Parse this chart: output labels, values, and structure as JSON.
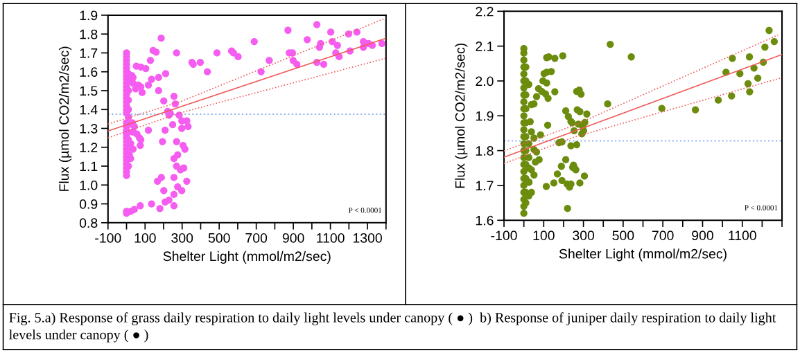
{
  "chart_data": [
    {
      "type": "scatter",
      "xlabel": "Shelter Light (mmol/m2/sec)",
      "ylabel": "Flux (µmol CO2/m2/sec)",
      "marker": "circle",
      "grid": false,
      "legend": false,
      "xlim": [
        -100,
        1400
      ],
      "ylim": [
        0.8,
        1.9
      ],
      "xticks": [
        -100,
        {
          "value": 0,
          "label": null
        },
        100,
        {
          "value": 200,
          "label": null
        },
        300,
        {
          "value": 400,
          "label": null
        },
        500,
        {
          "value": 600,
          "label": null
        },
        700,
        {
          "value": 800,
          "label": null
        },
        900,
        {
          "value": 1000,
          "label": null
        },
        1100,
        {
          "value": 1200,
          "label": null
        },
        1300,
        {
          "value": 1400,
          "label": null
        }
      ],
      "yticks": [
        {
          "value": 0.8,
          "label": "0.8"
        },
        {
          "value": 0.9,
          "label": "0.9"
        },
        {
          "value": 1.0,
          "label": "1.0"
        },
        {
          "value": 1.1,
          "label": "1.1"
        },
        {
          "value": 1.2,
          "label": "1.2"
        },
        {
          "value": 1.3,
          "label": "1.3"
        },
        {
          "value": 1.4,
          "label": "1.4"
        },
        {
          "value": 1.5,
          "label": "1.5"
        },
        {
          "value": 1.6,
          "label": "1.6"
        },
        {
          "value": 1.7,
          "label": "1.7"
        },
        {
          "value": 1.8,
          "label": "1.8"
        },
        {
          "value": 1.9,
          "label": "1.9"
        }
      ],
      "ref_lines": [
        {
          "axis": "y",
          "value": 1.375,
          "color": "#8fb0f5",
          "line_style": "dotted"
        }
      ],
      "annotations": [
        "P < 0.0001",
        "Fig. 5.a) Response of grass daily respiration to daily light levels under canopy ( ● )  b) Response of juniper daily respiration to daily light levels under canopy ( ● )"
      ],
      "series": [
        {
          "color": "#f55cf0",
          "x": [
            0,
            0,
            0,
            0,
            0,
            0,
            0,
            0,
            0,
            0,
            0,
            0,
            0,
            0,
            0,
            0,
            0,
            0,
            0,
            0,
            0,
            0,
            0,
            0,
            0,
            0,
            0,
            0,
            0,
            0,
            0,
            0,
            0,
            0,
            10,
            10,
            10,
            10,
            10,
            10,
            10,
            10,
            10,
            10,
            187,
            143,
            160,
            270,
            129,
            53,
            77,
            104,
            118,
            135,
            173,
            211,
            173,
            201,
            256,
            263,
            222,
            236,
            229,
            284,
            298,
            325,
            332,
            298,
            208,
            249,
            118,
            194,
            270,
            305,
            315,
            256,
            276,
            270,
            291,
            309,
            167,
            188,
            256,
            276,
            298,
            325,
            201,
            208,
            229,
            256,
            256,
            180,
            135,
            74,
            22,
            42,
            77,
            74,
            35,
            63,
            77,
            84,
            49,
            28,
            35,
            31,
            42,
            35,
            56,
            70,
            22,
            35,
            15,
            22,
            436,
            353,
            360,
            398,
            488,
            567,
            577,
            602,
            689,
            726,
            770,
            871,
            878,
            895,
            899,
            919,
            975,
            1027,
            1027,
            1047,
            1041,
            1064,
            1102,
            1110,
            1138,
            1129,
            1147,
            1198,
            1243,
            1206,
            1278,
            1278,
            1306,
            1326,
            1378
          ],
          "values": [
            1.05,
            1.07,
            1.09,
            1.11,
            1.13,
            1.15,
            1.17,
            1.19,
            1.21,
            1.23,
            1.25,
            1.27,
            1.29,
            1.31,
            1.33,
            1.38,
            1.4,
            1.42,
            1.44,
            1.46,
            1.48,
            1.5,
            1.52,
            1.54,
            1.56,
            1.58,
            1.6,
            1.62,
            1.64,
            1.66,
            1.68,
            1.7,
            0.85,
            0.86,
            1.1,
            1.24,
            1.28,
            1.32,
            1.36,
            1.4,
            1.45,
            1.5,
            1.55,
            1.59,
            1.778,
            1.713,
            1.704,
            1.7,
            1.66,
            1.63,
            1.625,
            1.617,
            1.53,
            1.56,
            1.57,
            1.59,
            1.5,
            1.445,
            1.47,
            1.43,
            1.39,
            1.38,
            1.37,
            1.37,
            1.34,
            1.34,
            1.31,
            1.3,
            1.29,
            1.32,
            1.29,
            1.23,
            1.23,
            1.21,
            1.19,
            1.14,
            1.16,
            1.1,
            1.08,
            1.09,
            1.02,
            1.04,
            1.04,
            0.99,
            0.97,
            1.02,
            0.97,
            0.91,
            0.92,
            0.95,
            0.89,
            0.875,
            0.9,
            0.89,
            0.86,
            0.87,
            1.24,
            1.21,
            1.54,
            1.53,
            1.52,
            1.49,
            1.51,
            1.58,
            1.57,
            1.33,
            1.31,
            1.28,
            1.27,
            1.25,
            1.22,
            1.19,
            1.16,
            1.14,
            1.6,
            1.65,
            1.64,
            1.65,
            1.7,
            1.71,
            1.7,
            1.68,
            1.76,
            1.6,
            1.66,
            1.82,
            1.7,
            1.7,
            1.66,
            1.64,
            1.77,
            1.85,
            1.65,
            1.75,
            1.73,
            1.64,
            1.81,
            1.76,
            1.74,
            1.7,
            1.68,
            1.8,
            1.81,
            1.71,
            1.76,
            1.73,
            1.75,
            1.74,
            1.75
          ]
        },
        {
          "type": "line",
          "color": "#f05a5a",
          "line_style": "solid",
          "marker": "none",
          "x": [
            -100,
            1400
          ],
          "values": [
            1.286,
            1.778
          ]
        },
        {
          "type": "line",
          "color": "#f05a5a",
          "line_style": "dotted",
          "marker": "none",
          "x": [
            -100,
            300,
            1400
          ],
          "values": [
            1.323,
            1.445,
            1.885
          ]
        },
        {
          "type": "line",
          "color": "#f05a5a",
          "line_style": "dotted",
          "marker": "none",
          "x": [
            -100,
            300,
            1400
          ],
          "values": [
            1.25,
            1.385,
            1.672
          ]
        }
      ]
    },
    {
      "type": "scatter",
      "xlabel": "Shelter Light (mmol/m2/sec)",
      "ylabel": "Flux (µmol CO2/m2/sec)",
      "marker": "circle",
      "grid": false,
      "legend": false,
      "xlim": [
        -100,
        1300
      ],
      "ylim": [
        1.6,
        2.2
      ],
      "xticks": [
        -100,
        {
          "value": 0,
          "label": null
        },
        100,
        {
          "value": 200,
          "label": null
        },
        300,
        {
          "value": 400,
          "label": null
        },
        500,
        {
          "value": 600,
          "label": null
        },
        700,
        {
          "value": 800,
          "label": null
        },
        900,
        {
          "value": 1000,
          "label": null
        },
        1100,
        {
          "value": 1200,
          "label": null
        },
        {
          "value": 1300,
          "label": null
        }
      ],
      "yticks": [
        {
          "value": 1.6,
          "label": "1.6"
        },
        {
          "value": 1.7,
          "label": "1.7"
        },
        {
          "value": 1.8,
          "label": "1.8"
        },
        {
          "value": 1.9,
          "label": "1.9"
        },
        {
          "value": 2.0,
          "label": "2.0"
        },
        {
          "value": 2.1,
          "label": "2.1"
        },
        {
          "value": 2.2,
          "label": "2.2"
        }
      ],
      "ref_lines": [
        {
          "axis": "y",
          "value": 1.828,
          "color": "#8fb0f5",
          "line_style": "dotted"
        }
      ],
      "annotations": [
        "P < 0.0001"
      ],
      "series": [
        {
          "color": "#6b8c0c",
          "x": [
            0,
            0,
            0,
            0,
            0,
            0,
            0,
            0,
            0,
            0,
            0,
            0,
            0,
            0,
            0,
            0,
            0,
            0,
            0,
            0,
            0,
            0,
            0,
            0,
            0,
            10,
            10,
            10,
            10,
            10,
            10,
            10,
            10,
            10,
            10,
            10,
            25,
            25,
            25,
            25,
            25,
            25,
            196,
            115,
            125,
            156,
            138,
            102,
            115,
            96,
            115,
            74,
            90,
            109,
            64,
            51,
            38,
            156,
            122,
            120,
            84,
            211,
            224,
            237,
            243,
            269,
            282,
            266,
            279,
            288,
            275,
            297,
            307,
            317,
            292,
            301,
            253,
            266,
            237,
            177,
            192,
            211,
            189,
            250,
            256,
            262,
            246,
            169,
            151,
            192,
            218,
            230,
            237,
            282,
            305,
            113,
            220,
            422,
            435,
            541,
            695,
            864,
            979,
            1018,
            1050,
            1046,
            1088,
            1129,
            1136,
            1137,
            1159,
            1178,
            1206,
            1214,
            1235,
            1261,
            51,
            64,
            77,
            58,
            38,
            51,
            26,
            38,
            32,
            38,
            51
          ],
          "values": [
            1.62,
            1.64,
            1.66,
            1.68,
            1.7,
            1.72,
            1.74,
            1.76,
            1.78,
            1.8,
            1.82,
            1.84,
            1.86,
            1.88,
            1.9,
            1.92,
            1.94,
            1.96,
            1.98,
            2.0,
            2.02,
            2.04,
            2.06,
            2.08,
            2.093,
            1.65,
            1.68,
            1.72,
            1.76,
            1.8,
            1.84,
            1.88,
            1.92,
            1.96,
            2.0,
            2.04,
            1.67,
            1.71,
            1.75,
            1.78,
            1.82,
            1.99,
            2.072,
            2.067,
            2.069,
            2.065,
            2.027,
            2.021,
            2.025,
            2.0,
            1.994,
            1.978,
            1.97,
            1.963,
            1.955,
            1.934,
            1.932,
            1.969,
            1.95,
            1.873,
            1.845,
            1.914,
            1.898,
            1.884,
            1.88,
            1.917,
            1.912,
            1.97,
            1.974,
            1.962,
            1.876,
            1.87,
            1.881,
            1.905,
            1.848,
            1.857,
            1.857,
            1.817,
            1.814,
            1.823,
            1.825,
            1.774,
            1.755,
            1.758,
            1.749,
            1.745,
            1.752,
            1.733,
            1.707,
            1.714,
            1.704,
            1.695,
            1.704,
            1.707,
            1.727,
            1.697,
            1.634,
            1.934,
            2.105,
            2.069,
            1.921,
            1.917,
            1.945,
            2.025,
            2.065,
            1.957,
            2.021,
            1.992,
            2.069,
            1.969,
            2.037,
            2.008,
            2.054,
            2.097,
            2.145,
            2.113,
            1.803,
            1.796,
            1.774,
            1.767,
            1.745,
            1.73,
            1.709,
            1.68,
            1.883,
            1.854,
            1.836
          ]
        },
        {
          "type": "line",
          "color": "#f05a5a",
          "line_style": "solid",
          "marker": "none",
          "x": [
            -100,
            1300
          ],
          "values": [
            1.781,
            2.076
          ]
        },
        {
          "type": "line",
          "color": "#f05a5a",
          "line_style": "dotted",
          "marker": "none",
          "x": [
            -100,
            250,
            1280
          ],
          "values": [
            1.799,
            1.872,
            2.132
          ]
        },
        {
          "type": "line",
          "color": "#f05a5a",
          "line_style": "dotted",
          "marker": "none",
          "x": [
            -100,
            250,
            1290
          ],
          "values": [
            1.763,
            1.838,
            2.008
          ]
        }
      ]
    }
  ]
}
